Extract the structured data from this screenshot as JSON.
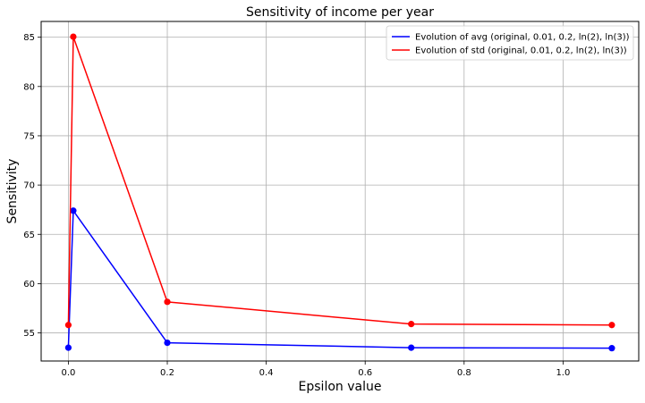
{
  "chart_data": {
    "type": "line",
    "title": "Sensitivity of income per year",
    "xlabel": "Epsilon value",
    "ylabel": "Sensitivity",
    "xlim": [
      -0.055,
      1.153
    ],
    "ylim": [
      52.15,
      86.6
    ],
    "xticks": [
      0.0,
      0.2,
      0.4,
      0.6,
      0.8,
      1.0
    ],
    "xtick_labels": [
      "0.0",
      "0.2",
      "0.4",
      "0.6",
      "0.8",
      "1.0"
    ],
    "yticks": [
      55,
      60,
      65,
      70,
      75,
      80,
      85
    ],
    "ytick_labels": [
      "55",
      "60",
      "65",
      "70",
      "75",
      "80",
      "85"
    ],
    "grid": true,
    "legend_position": "top-right",
    "x": [
      0.0,
      0.01,
      0.2,
      0.6931,
      1.0986
    ],
    "series": [
      {
        "name": "Evolution of avg (original, 0.01, 0.2, ln(2), ln(3))",
        "color": "#0000ff",
        "values": [
          53.5,
          67.4,
          54.0,
          53.5,
          53.45
        ]
      },
      {
        "name": "Evolution of std (original, 0.01, 0.2, ln(2), ln(3))",
        "color": "#ff0000",
        "values": [
          55.8,
          85.05,
          58.15,
          55.9,
          55.8
        ]
      }
    ]
  }
}
